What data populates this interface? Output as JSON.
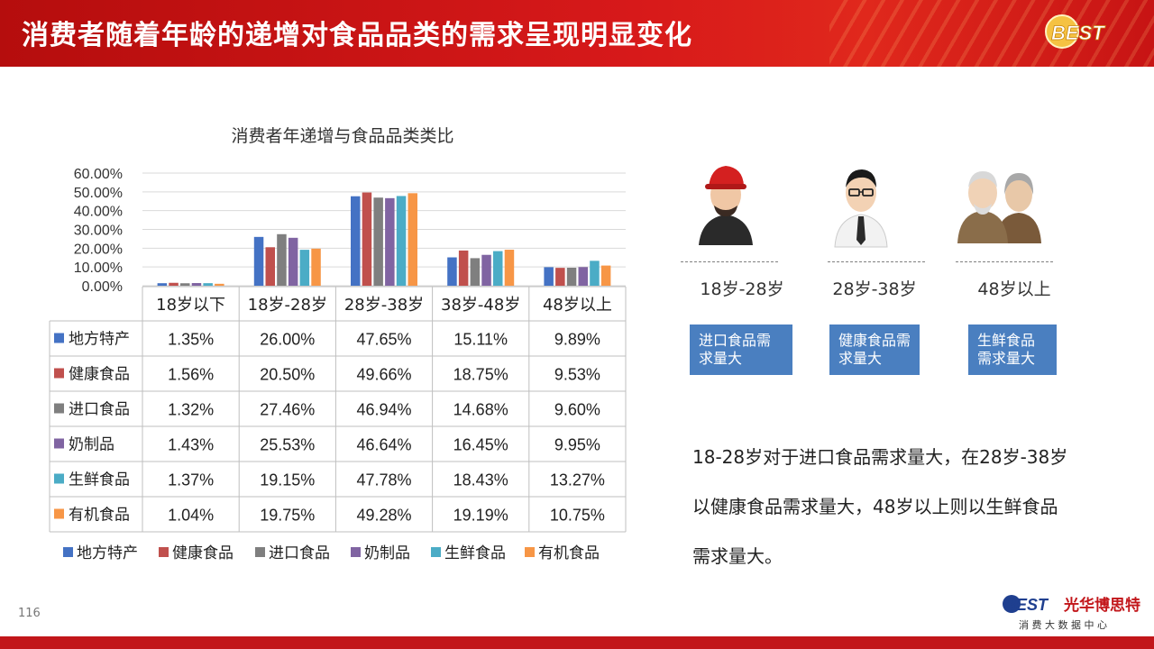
{
  "header": {
    "title": "消费者随着年龄的递增对食品品类的需求呈现明显变化",
    "logo_text": "BEST"
  },
  "chart_data": {
    "type": "bar",
    "title": "消费者年递增与食品品类类比",
    "categories": [
      "18岁以下",
      "18岁-28岁",
      "28岁-38岁",
      "38岁-48岁",
      "48岁以上"
    ],
    "ylim": [
      0,
      60
    ],
    "yticks": [
      "60.00%",
      "50.00%",
      "40.00%",
      "30.00%",
      "20.00%",
      "10.00%",
      "0.00%"
    ],
    "grid": true,
    "legend_position": "bottom",
    "series": [
      {
        "name": "地方特产",
        "color": "#4472c4",
        "values": [
          1.35,
          26.0,
          47.65,
          15.11,
          9.89
        ],
        "labels": [
          "1.35%",
          "26.00%",
          "47.65%",
          "15.11%",
          "9.89%"
        ]
      },
      {
        "name": "健康食品",
        "color": "#c0504d",
        "values": [
          1.56,
          20.5,
          49.66,
          18.75,
          9.53
        ],
        "labels": [
          "1.56%",
          "20.50%",
          "49.66%",
          "18.75%",
          "9.53%"
        ]
      },
      {
        "name": "进口食品",
        "color": "#7f7f7f",
        "values": [
          1.32,
          27.46,
          46.94,
          14.68,
          9.6
        ],
        "labels": [
          "1.32%",
          "27.46%",
          "46.94%",
          "14.68%",
          "9.60%"
        ]
      },
      {
        "name": "奶制品",
        "color": "#8064a2",
        "values": [
          1.43,
          25.53,
          46.64,
          16.45,
          9.95
        ],
        "labels": [
          "1.43%",
          "25.53%",
          "46.64%",
          "16.45%",
          "9.95%"
        ]
      },
      {
        "name": "生鲜食品",
        "color": "#4bacc6",
        "values": [
          1.37,
          19.15,
          47.78,
          18.43,
          13.27
        ],
        "labels": [
          "1.37%",
          "19.15%",
          "47.78%",
          "18.43%",
          "13.27%"
        ]
      },
      {
        "name": "有机食品",
        "color": "#f79646",
        "values": [
          1.04,
          19.75,
          49.28,
          19.19,
          10.75
        ],
        "labels": [
          "1.04%",
          "19.75%",
          "49.28%",
          "19.19%",
          "10.75%"
        ]
      }
    ]
  },
  "people": [
    {
      "age": "18岁-28岁",
      "need": "进口食品需求量大",
      "icon": "young-man-red-cap-icon"
    },
    {
      "age": "28岁-38岁",
      "need": "健康食品需求量大",
      "icon": "businessman-glasses-icon"
    },
    {
      "age": "48岁以上",
      "need": "生鲜食品需求量大",
      "icon": "elderly-couple-icon"
    }
  ],
  "summary": "18-28岁对于进口食品需求量大，在28岁-38岁以健康食品需求量大，48岁以上则以生鲜食品需求量大。",
  "page_number": "116",
  "footer": {
    "brand_cn": "光华博思特",
    "brand_sub": "消 费 大 数 据 中 心",
    "logo_text": "BEST"
  },
  "colors": {
    "accent_red": "#c2161a",
    "box_blue": "#4a7fc0"
  }
}
